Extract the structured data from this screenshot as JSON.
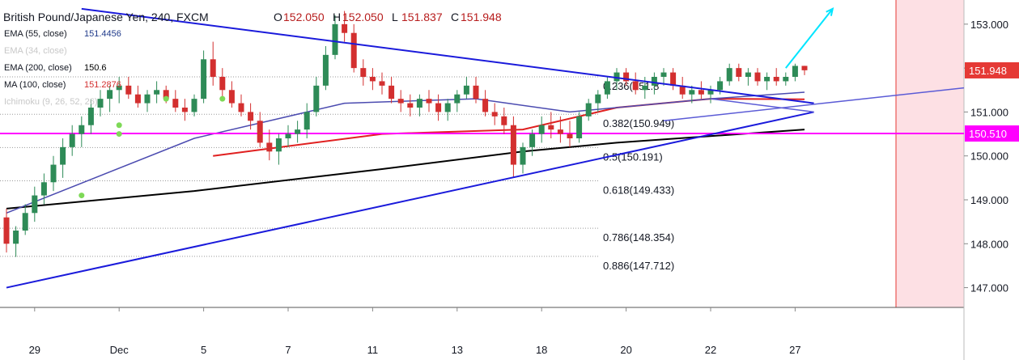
{
  "header": {
    "title": "British Pound/Japanese Yen, 240, FXCM",
    "ohlc": [
      {
        "label": "O",
        "value": "152.050"
      },
      {
        "label": "H",
        "value": "152.050"
      },
      {
        "label": "L",
        "value": "151.837"
      },
      {
        "label": "C",
        "value": "151.948"
      }
    ]
  },
  "indicators": [
    {
      "name": "EMA (55, close)",
      "value": "151.4456",
      "color": "#1f3a8a"
    },
    {
      "name": "EMA (34, close)",
      "value": "",
      "color": "#c8c8c8"
    },
    {
      "name": "EMA (200, close)",
      "value": "150.6",
      "color": "#000000"
    },
    {
      "name": "MA (100, close)",
      "value": "151.2876",
      "color": "#d32f2f"
    },
    {
      "name": "Ichimoku (9, 26, 52, 26)",
      "value": "",
      "color": "#c8c8c8"
    }
  ],
  "colors": {
    "up_candle": "#2e8b57",
    "down_candle": "#d32f2f",
    "triangle_lines": "#1a1adb",
    "channel_line": "#5b5bd6",
    "horizontal_level": "#ff00ff",
    "arrow": "#00e5ff",
    "forecast_zone": "#fde0e4",
    "ema55": "#4b4bb0",
    "ma100": "#e02020",
    "ema200": "#000000",
    "ichimoku_dots": "#7ed957"
  },
  "chart_data": {
    "type": "candlestick",
    "y_axis": {
      "ticks": [
        "153.000",
        "152.000",
        "151.000",
        "150.000",
        "149.000",
        "148.000",
        "147.000"
      ],
      "ylim": [
        146.55,
        153.55
      ]
    },
    "x_axis": {
      "ticks": [
        "29",
        "Dec",
        "5",
        "7",
        "11",
        "13",
        "18",
        "20",
        "22",
        "27"
      ]
    },
    "price_labels": [
      {
        "value": "151.948",
        "color": "#e53935"
      },
      {
        "value": "150.510",
        "color": "#ff00ff"
      }
    ],
    "horizontal_level": 150.51,
    "fibonacci": [
      {
        "label": "0.236(151.8",
        "price": 151.8
      },
      {
        "label": "0.382(150.949)",
        "price": 150.949
      },
      {
        "label": "0.5(150.191)",
        "price": 150.191
      },
      {
        "label": "0.618(149.433)",
        "price": 149.433
      },
      {
        "label": "0.786(148.354)",
        "price": 148.354
      },
      {
        "label": "0.886(147.712)",
        "price": 147.712
      }
    ],
    "candles": [
      [
        148.6,
        148.8,
        147.8,
        148.0
      ],
      [
        148.0,
        148.4,
        147.7,
        148.3
      ],
      [
        148.3,
        148.9,
        148.2,
        148.7
      ],
      [
        148.7,
        149.3,
        148.5,
        149.1
      ],
      [
        149.1,
        149.6,
        148.9,
        149.4
      ],
      [
        149.4,
        150.0,
        149.2,
        149.8
      ],
      [
        149.8,
        150.4,
        149.5,
        150.2
      ],
      [
        150.2,
        150.7,
        150.0,
        150.5
      ],
      [
        150.5,
        150.9,
        150.2,
        150.7
      ],
      [
        150.7,
        151.3,
        150.5,
        151.1
      ],
      [
        151.1,
        151.5,
        150.9,
        151.3
      ],
      [
        151.3,
        151.6,
        151.0,
        151.5
      ],
      [
        151.5,
        151.8,
        151.2,
        151.6
      ],
      [
        151.6,
        151.8,
        151.3,
        151.4
      ],
      [
        151.4,
        151.6,
        151.1,
        151.2
      ],
      [
        151.2,
        151.5,
        151.0,
        151.4
      ],
      [
        151.4,
        151.7,
        151.2,
        151.5
      ],
      [
        151.5,
        151.6,
        151.2,
        151.3
      ],
      [
        151.3,
        151.5,
        151.0,
        151.1
      ],
      [
        151.1,
        151.3,
        150.8,
        151.0
      ],
      [
        151.0,
        151.4,
        150.9,
        151.3
      ],
      [
        151.3,
        152.4,
        151.2,
        152.2
      ],
      [
        152.2,
        152.6,
        151.6,
        151.8
      ],
      [
        151.8,
        152.0,
        151.3,
        151.5
      ],
      [
        151.5,
        151.7,
        151.1,
        151.2
      ],
      [
        151.2,
        151.4,
        150.9,
        151.0
      ],
      [
        151.0,
        151.2,
        150.6,
        150.8
      ],
      [
        150.8,
        151.0,
        150.2,
        150.3
      ],
      [
        150.3,
        150.6,
        149.9,
        150.1
      ],
      [
        150.1,
        150.5,
        149.8,
        150.4
      ],
      [
        150.4,
        150.7,
        150.2,
        150.5
      ],
      [
        150.5,
        150.8,
        150.3,
        150.6
      ],
      [
        150.6,
        151.2,
        150.4,
        151.0
      ],
      [
        151.0,
        151.8,
        150.9,
        151.6
      ],
      [
        151.6,
        152.5,
        151.5,
        152.3
      ],
      [
        152.3,
        153.2,
        152.2,
        153.0
      ],
      [
        153.0,
        153.3,
        152.6,
        152.8
      ],
      [
        152.8,
        153.0,
        151.9,
        152.0
      ],
      [
        152.0,
        152.2,
        151.6,
        151.8
      ],
      [
        151.8,
        152.0,
        151.5,
        151.7
      ],
      [
        151.7,
        151.9,
        151.4,
        151.6
      ],
      [
        151.6,
        151.8,
        151.2,
        151.3
      ],
      [
        151.3,
        151.5,
        151.0,
        151.2
      ],
      [
        151.2,
        151.4,
        150.9,
        151.1
      ],
      [
        151.1,
        151.4,
        150.9,
        151.3
      ],
      [
        151.3,
        151.5,
        151.0,
        151.2
      ],
      [
        151.2,
        151.4,
        150.8,
        151.0
      ],
      [
        151.0,
        151.3,
        150.8,
        151.2
      ],
      [
        151.2,
        151.5,
        151.0,
        151.4
      ],
      [
        151.4,
        151.8,
        151.3,
        151.6
      ],
      [
        151.6,
        151.8,
        151.2,
        151.3
      ],
      [
        151.3,
        151.5,
        150.9,
        151.0
      ],
      [
        151.0,
        151.2,
        150.7,
        150.9
      ],
      [
        150.9,
        151.1,
        150.5,
        150.7
      ],
      [
        150.7,
        150.9,
        149.5,
        149.8
      ],
      [
        149.8,
        150.3,
        149.6,
        150.2
      ],
      [
        150.2,
        150.6,
        150.0,
        150.5
      ],
      [
        150.5,
        150.9,
        150.3,
        150.7
      ],
      [
        150.7,
        151.0,
        150.4,
        150.6
      ],
      [
        150.6,
        150.9,
        150.3,
        150.5
      ],
      [
        150.5,
        150.8,
        150.2,
        150.4
      ],
      [
        150.4,
        151.0,
        150.3,
        150.9
      ],
      [
        150.9,
        151.3,
        150.8,
        151.2
      ],
      [
        151.2,
        151.5,
        151.0,
        151.4
      ],
      [
        151.4,
        151.8,
        151.3,
        151.7
      ],
      [
        151.7,
        152.0,
        151.5,
        151.9
      ],
      [
        151.9,
        152.0,
        151.6,
        151.7
      ],
      [
        151.7,
        151.9,
        151.4,
        151.5
      ],
      [
        151.5,
        151.8,
        151.3,
        151.6
      ],
      [
        151.6,
        151.9,
        151.4,
        151.8
      ],
      [
        151.8,
        152.0,
        151.6,
        151.9
      ],
      [
        151.9,
        152.0,
        151.5,
        151.6
      ],
      [
        151.6,
        151.8,
        151.3,
        151.4
      ],
      [
        151.4,
        151.6,
        151.2,
        151.5
      ],
      [
        151.5,
        151.7,
        151.3,
        151.4
      ],
      [
        151.4,
        151.6,
        151.2,
        151.5
      ],
      [
        151.5,
        151.8,
        151.4,
        151.7
      ],
      [
        151.7,
        152.1,
        151.6,
        152.0
      ],
      [
        152.0,
        152.1,
        151.7,
        151.8
      ],
      [
        151.8,
        152.0,
        151.6,
        151.9
      ],
      [
        151.9,
        152.0,
        151.6,
        151.7
      ],
      [
        151.7,
        151.9,
        151.5,
        151.8
      ],
      [
        151.8,
        152.0,
        151.6,
        151.7
      ],
      [
        151.7,
        151.9,
        151.6,
        151.8
      ],
      [
        151.8,
        152.1,
        151.7,
        152.05
      ],
      [
        152.05,
        152.05,
        151.84,
        151.95
      ]
    ],
    "ema55": [
      [
        0,
        148.7
      ],
      [
        20,
        150.4
      ],
      [
        36,
        151.2
      ],
      [
        50,
        151.3
      ],
      [
        60,
        151.0
      ],
      [
        75,
        151.3
      ],
      [
        85,
        151.45
      ]
    ],
    "ma100": [
      [
        22,
        150.0
      ],
      [
        40,
        150.5
      ],
      [
        55,
        150.6
      ],
      [
        65,
        151.1
      ],
      [
        75,
        151.3
      ],
      [
        85,
        151.29
      ]
    ],
    "ema200": [
      [
        0,
        148.8
      ],
      [
        20,
        149.2
      ],
      [
        40,
        149.7
      ],
      [
        55,
        150.1
      ],
      [
        65,
        150.3
      ],
      [
        85,
        150.6
      ]
    ],
    "triangle": {
      "upper": [
        [
          8,
          153.35
        ],
        [
          86,
          151.2
        ]
      ],
      "lower": [
        [
          0,
          147.0
        ],
        [
          86,
          151.0
        ]
      ]
    },
    "channel_line": [
      [
        75,
        151.3
      ],
      [
        86,
        151.0
      ]
    ],
    "arrow": {
      "from": [
        83,
        152.0
      ],
      "to": [
        88,
        153.35
      ]
    },
    "ichimoku_points": [
      [
        8,
        149.1
      ],
      [
        12,
        150.7
      ],
      [
        12,
        150.5
      ],
      [
        17,
        151.3
      ],
      [
        23,
        151.3
      ]
    ],
    "forecast_zone_start": 88
  }
}
